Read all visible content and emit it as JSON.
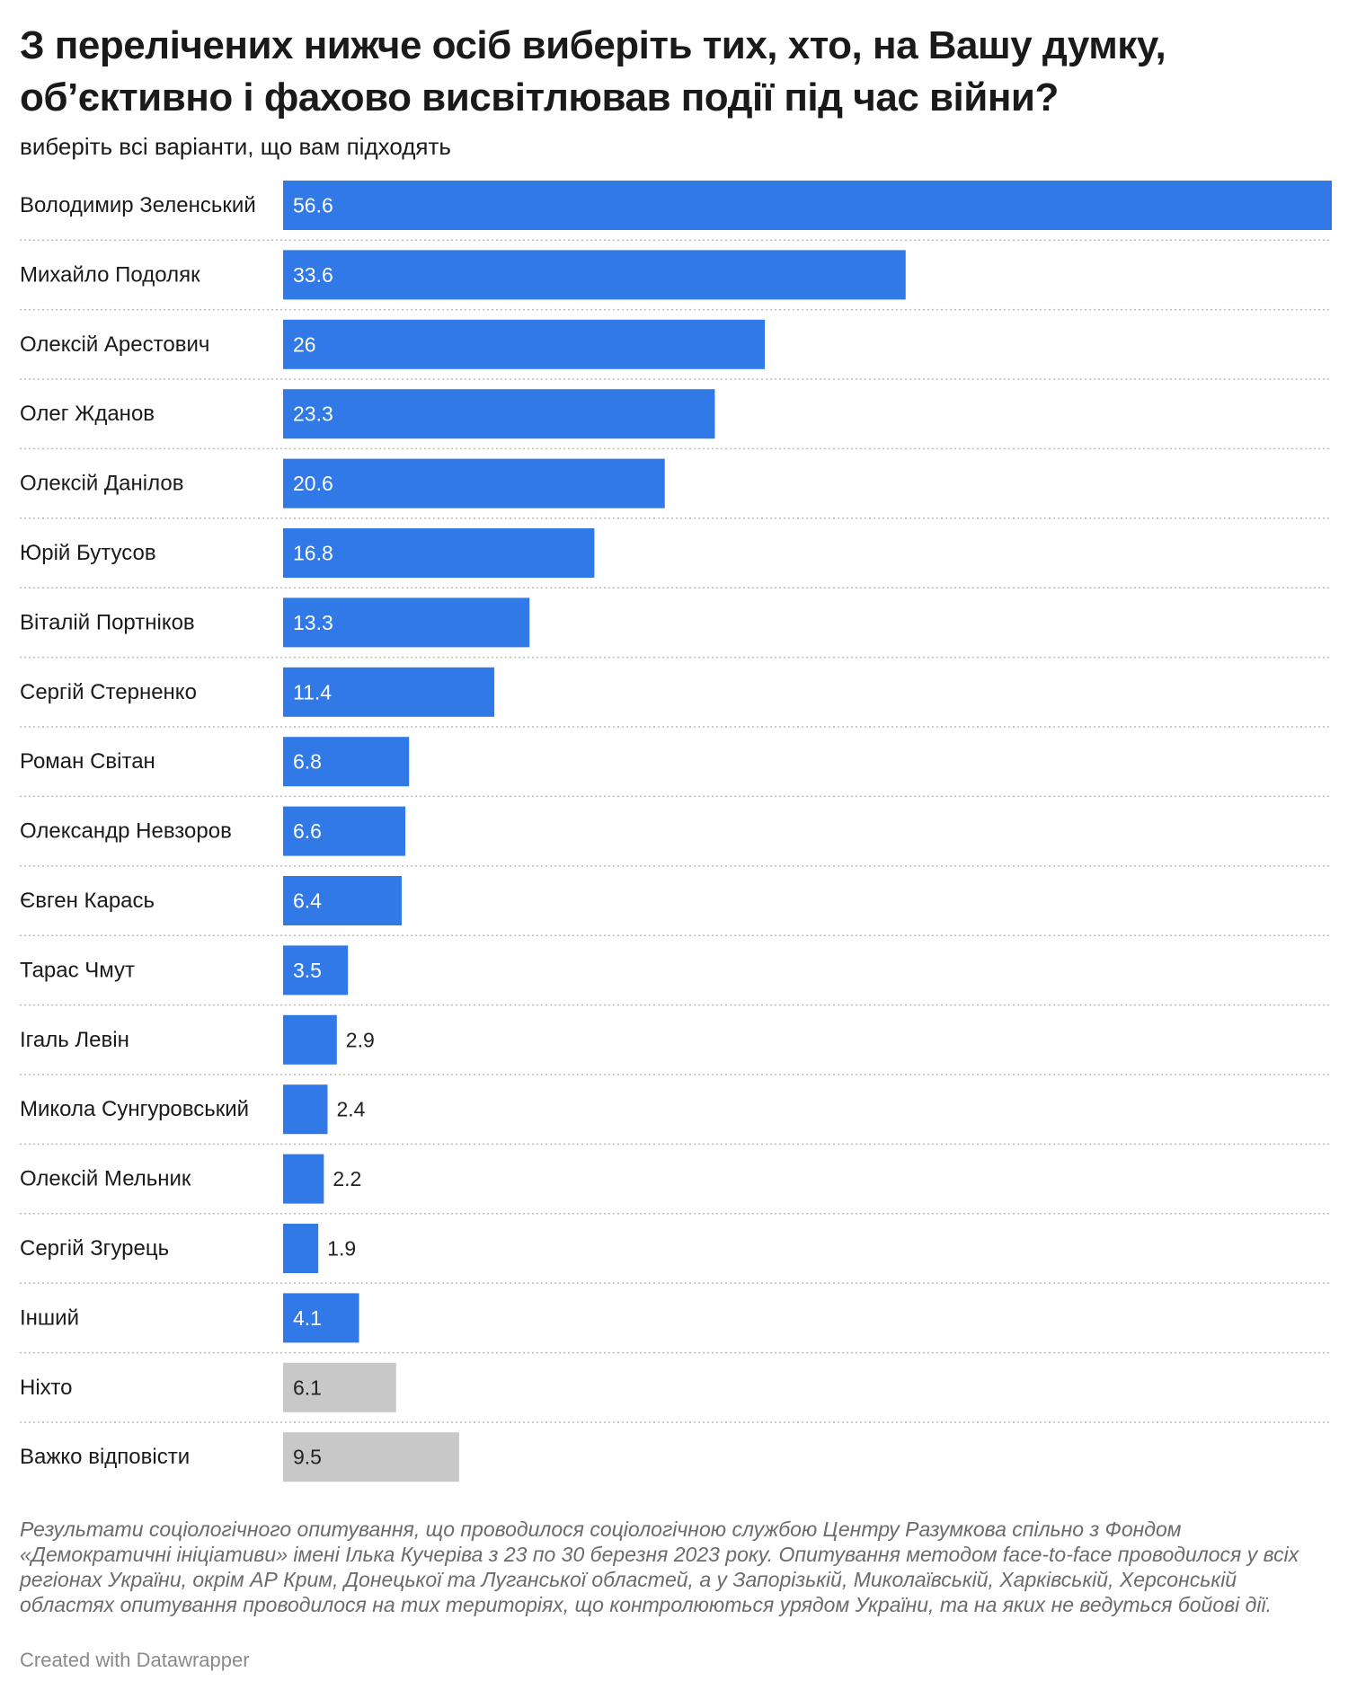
{
  "header": {
    "title": "З перелічених нижче осіб виберіть тих, хто, на Вашу думку, об’єктивно і фахово висвітлював події під час війни?",
    "subtitle": "виберіть всі варіанти, що вам підходять"
  },
  "colors": {
    "primary_bar": "#3079e6",
    "secondary_bar": "#c8c8c8",
    "label_inside": "#ffffff",
    "label_outside": "#222222",
    "separator": "#bbbbbb"
  },
  "chart_data": {
    "type": "bar",
    "orientation": "horizontal",
    "categories": [
      "Володимир Зеленський",
      "Михайло Подоляк",
      "Олексій Арестович",
      "Олег Жданов",
      "Олексій Данілов",
      "Юрій Бутусов",
      "Віталій Портніков",
      "Сергій Стерненко",
      "Роман Світан",
      "Олександр Невзоров",
      "Євген Карась",
      "Тарас Чмут",
      "Ігаль Левін",
      "Микола Сунгуровський",
      "Олексій Мельник",
      "Сергій Згурець",
      "Інший",
      "Ніхто",
      "Важко відповісти"
    ],
    "values": [
      56.6,
      33.6,
      26,
      23.3,
      20.6,
      16.8,
      13.3,
      11.4,
      6.8,
      6.6,
      6.4,
      3.5,
      2.9,
      2.4,
      2.2,
      1.9,
      4.1,
      6.1,
      9.5
    ],
    "value_labels": [
      "56.6",
      "33.6",
      "26",
      "23.3",
      "20.6",
      "16.8",
      "13.3",
      "11.4",
      "6.8",
      "6.6",
      "6.4",
      "3.5",
      "2.9",
      "2.4",
      "2.2",
      "1.9",
      "4.1",
      "6.1",
      "9.5"
    ],
    "bar_group": [
      "primary",
      "primary",
      "primary",
      "primary",
      "primary",
      "primary",
      "primary",
      "primary",
      "primary",
      "primary",
      "primary",
      "primary",
      "primary",
      "primary",
      "primary",
      "primary",
      "primary",
      "secondary",
      "secondary"
    ],
    "xlim": [
      0,
      56.6
    ],
    "grid": false,
    "legend": "none"
  },
  "footer": {
    "notes": "Результати соціологічного опитування, що проводилося соціологічною службою Центру Разумкова спільно з Фондом «Демократичні ініціативи» імені Ілька Кучеріва з 23 по 30 березня 2023 року. Опитування методом face-to-face проводилося у всіх регіонах України, окрім АР Крим, Донецької та Луганської областей, а у Запорізькій, Миколаївській, Харківській, Херсонській областях опитування проводилося на тих територіях, що контролюються урядом України, та на яких не ведуться бойові дії.",
    "credit": "Created with Datawrapper"
  }
}
